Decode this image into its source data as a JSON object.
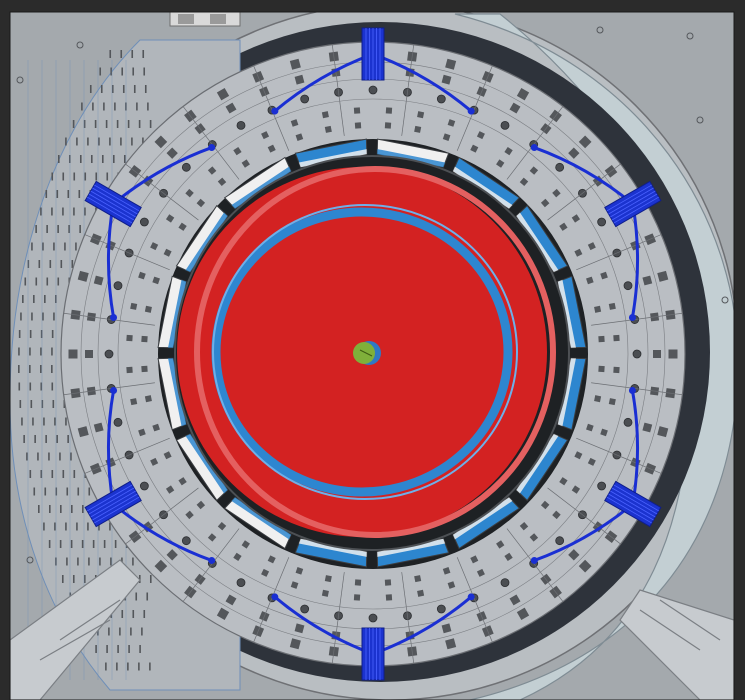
{
  "scene": {
    "kind": "CAD rendering, axial view of cylindrical detector assembly",
    "text": []
  },
  "colors": {
    "window_frame": "#2b2b2b",
    "background_steel": "#a4a9ad",
    "outer_ring_steel": "#b9bec2",
    "crescent_panel": "#c3cfd3",
    "cavity_dark": "#2e333b",
    "barrel_surface": "#b1b6bb",
    "barrel_slot": "#53565a",
    "gray_ring": "#babec3",
    "module_pad": "#54575b",
    "inner_gap": "#1e2124",
    "annulus_white": "#f0f0f0",
    "annulus_blue": "#2d86cf",
    "red_disk": "#d32222",
    "red_disk_light": "#e46060",
    "blue_ring": "#2e86d0",
    "center_green": "#7fb03a",
    "center_blue": "#2f79c4",
    "cable_blue": "#1a2fd3",
    "cable_block": "#1b33cf",
    "panel_line": "#6f8fb8"
  },
  "structure": {
    "outer_ring_modules": 48,
    "inner_ring_modules": 48,
    "annulus_segments": 16,
    "cable_bundles": 6,
    "cable_bundle_angles_deg": [
      -90,
      -30,
      30,
      90,
      150,
      210
    ]
  }
}
